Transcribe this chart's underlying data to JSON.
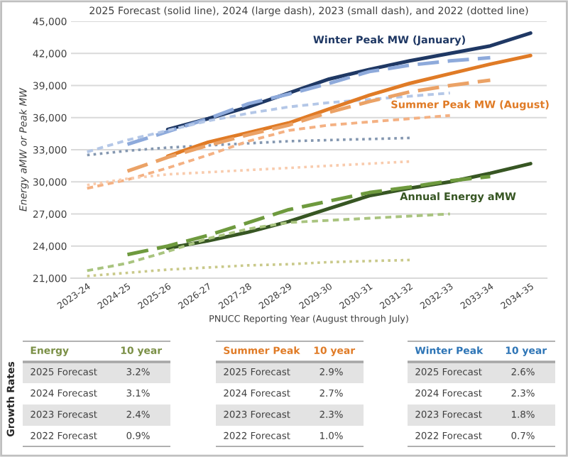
{
  "chart_data": [
    {
      "type": "line",
      "title": "2025 Forecast (solid line), 2024 (large dash), 2023 (small dash), and 2022 (dotted line)",
      "xlabel": "PNUCC Reporting Year (August through July)",
      "ylabel": "Energy aMW or Peak MW",
      "categories": [
        "2023-24",
        "2024-25",
        "2025-26",
        "2026-27",
        "2027-28",
        "2028-29",
        "2029-30",
        "2030-31",
        "2031-32",
        "2032-33",
        "2033-34",
        "2034-35"
      ],
      "ylim": [
        21000,
        45000
      ],
      "yticks": [
        {
          "value": 21000,
          "label": "21,000"
        },
        {
          "value": 24000,
          "label": "24,000"
        },
        {
          "value": 27000,
          "label": "27,000"
        },
        {
          "value": 30000,
          "label": "30,000"
        },
        {
          "value": 33000,
          "label": "33,000"
        },
        {
          "value": 36000,
          "label": "36,000"
        },
        {
          "value": 39000,
          "label": "39,000"
        },
        {
          "value": 42000,
          "label": "42,000"
        },
        {
          "value": 45000,
          "label": "45,000"
        }
      ],
      "grid": "y",
      "legend": false,
      "series": [
        {
          "name": "Winter Peak MW (January)",
          "color": "#1f3864",
          "line_style": "solid",
          "values": [
            null,
            null,
            34900,
            35900,
            37000,
            38300,
            39600,
            40500,
            41300,
            42000,
            42700,
            43900
          ]
        },
        {
          "color": "#8eaadb",
          "line_style": "dashed",
          "values": [
            null,
            33500,
            34700,
            35900,
            37300,
            38200,
            39200,
            40300,
            40900,
            41300,
            41600,
            null
          ]
        },
        {
          "color": "#b4c7e7",
          "line_style": "dashed",
          "values": [
            32800,
            33900,
            34800,
            35700,
            36400,
            37000,
            37400,
            37700,
            38000,
            38300,
            null,
            null
          ]
        },
        {
          "color": "#8497b0",
          "line_style": "dotted",
          "values": [
            32500,
            32900,
            33200,
            33400,
            33600,
            33800,
            33900,
            34000,
            34100,
            null,
            null,
            null
          ]
        },
        {
          "name": "Summer Peak MW (August)",
          "color": "#e07b26",
          "line_style": "solid",
          "values": [
            null,
            null,
            32400,
            33700,
            34600,
            35500,
            36800,
            38100,
            39200,
            40100,
            41000,
            41800
          ]
        },
        {
          "color": "#eba266",
          "line_style": "dashed",
          "values": [
            null,
            31000,
            32300,
            33400,
            34400,
            35300,
            36500,
            37500,
            38400,
            39000,
            39500,
            null
          ]
        },
        {
          "color": "#f4b183",
          "line_style": "dashed",
          "values": [
            29400,
            30200,
            31300,
            32500,
            33800,
            34800,
            35300,
            35600,
            35900,
            36200,
            null,
            null
          ]
        },
        {
          "color": "#f8cbad",
          "line_style": "dotted",
          "values": [
            29700,
            30300,
            30700,
            30900,
            31100,
            31300,
            31500,
            31700,
            31900,
            null,
            null,
            null
          ]
        },
        {
          "name": "Annual Energy aMW",
          "color": "#375623",
          "line_style": "solid",
          "values": [
            null,
            null,
            23800,
            24500,
            25300,
            26300,
            27500,
            28700,
            29400,
            30000,
            30800,
            31700
          ]
        },
        {
          "color": "#6e9a3e",
          "line_style": "dashed",
          "values": [
            null,
            23200,
            24000,
            25000,
            26200,
            27400,
            28200,
            29000,
            29500,
            30100,
            30500,
            null
          ]
        },
        {
          "color": "#a9c47f",
          "line_style": "dashed",
          "values": [
            21700,
            22400,
            23500,
            24700,
            25600,
            26200,
            26400,
            26600,
            26800,
            27000,
            null,
            null
          ]
        },
        {
          "color": "#c9c98a",
          "line_style": "dotted",
          "values": [
            21200,
            21500,
            21800,
            22000,
            22200,
            22300,
            22500,
            22600,
            22700,
            null,
            null,
            null
          ]
        }
      ]
    },
    {
      "type": "other",
      "title": "Energy",
      "subtitle": "10 year",
      "ylabel": "Growth Rates",
      "color": "#7a8f45",
      "categories": [
        "2025 Forecast",
        "2024 Forecast",
        "2023 Forecast",
        "2022 Forecast"
      ],
      "value_labels": [
        "3.2%",
        "3.1%",
        "2.4%",
        "0.9%"
      ]
    },
    {
      "type": "other",
      "title": "Summer Peak",
      "subtitle": "10 year",
      "color": "#e07b26",
      "categories": [
        "2025 Forecast",
        "2024 Forecast",
        "2023 Forecast",
        "2022 Forecast"
      ],
      "value_labels": [
        "2.9%",
        "2.7%",
        "2.3%",
        "1.0%"
      ]
    },
    {
      "type": "other",
      "title": "Winter Peak",
      "subtitle": "10 year",
      "color": "#2e75b6",
      "categories": [
        "2025 Forecast",
        "2024 Forecast",
        "2023 Forecast",
        "2022 Forecast"
      ],
      "value_labels": [
        "2.6%",
        "2.3%",
        "1.8%",
        "0.7%"
      ]
    }
  ]
}
